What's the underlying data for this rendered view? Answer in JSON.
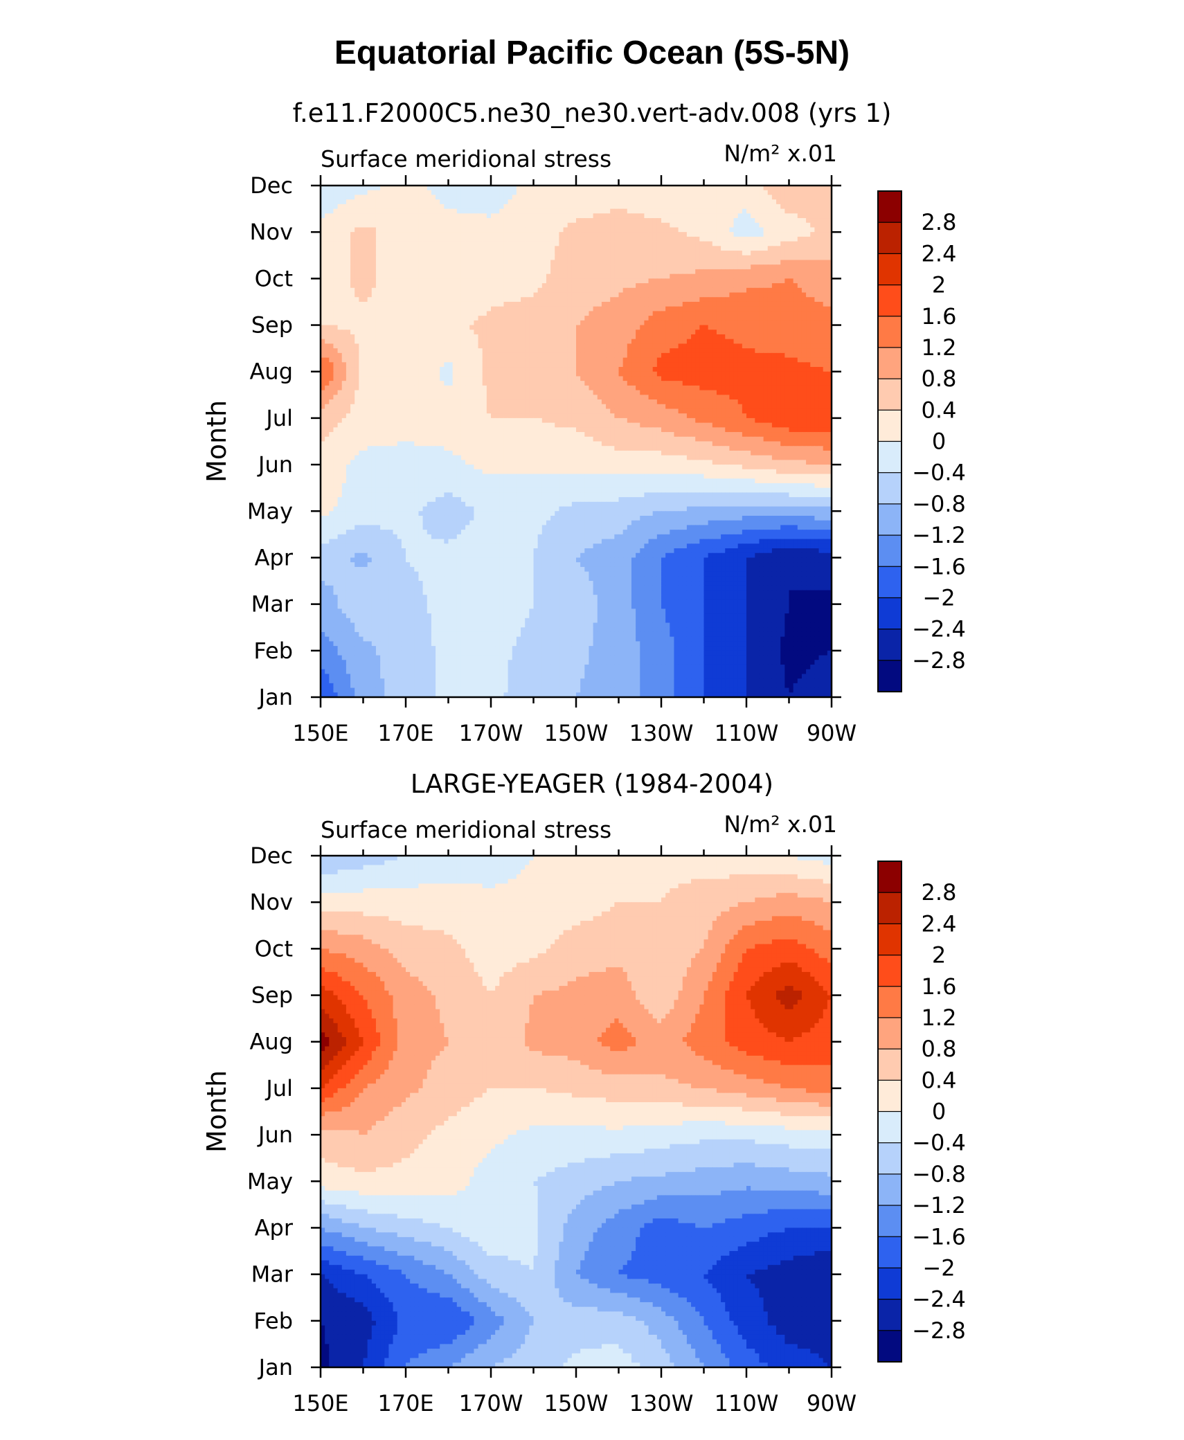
{
  "figure": {
    "title": "Equatorial Pacific Ocean (5S-5N)"
  },
  "colorbar": {
    "levels": [
      "2.8",
      "2.4",
      "2",
      "1.6",
      "1.2",
      "0.8",
      "0.4",
      "0",
      "−0.4",
      "−0.8",
      "−1.2",
      "−1.6",
      "−2",
      "−2.4",
      "−2.8"
    ],
    "colors": [
      "#8c0000",
      "#bb2200",
      "#e03400",
      "#ff4d1a",
      "#ff7a45",
      "#ffa47e",
      "#ffcbb0",
      "#ffebd9",
      "#d9ecfb",
      "#b6d2fb",
      "#8cb4f7",
      "#5c8ef2",
      "#2e62ef",
      "#0f3bd5",
      "#0a24a8",
      "#020a80"
    ]
  },
  "chart_data": [
    {
      "type": "heatmap",
      "subtitle": "f.e11.F2000C5.ne30_ne30.vert-adv.008 (yrs 1)",
      "left_label": "Surface meridional stress",
      "right_label": "N/m² x.01",
      "ylabel": "Month",
      "y_categories": [
        "Jan",
        "Feb",
        "Mar",
        "Apr",
        "May",
        "Jun",
        "Jul",
        "Aug",
        "Sep",
        "Oct",
        "Nov",
        "Dec"
      ],
      "x_ticks": [
        "150E",
        "170E",
        "170W",
        "150W",
        "130W",
        "110W",
        "90W"
      ],
      "x_longitudes": [
        150,
        160,
        170,
        180,
        190,
        200,
        210,
        220,
        230,
        240,
        250,
        260,
        270
      ],
      "values": [
        [
          -2.0,
          -1.0,
          -0.6,
          -0.3,
          -0.3,
          -0.6,
          -0.8,
          -1.0,
          -1.4,
          -2.0,
          -2.4,
          -2.8,
          -2.6
        ],
        [
          -1.4,
          -0.9,
          -0.6,
          -0.3,
          -0.3,
          -0.5,
          -0.7,
          -1.0,
          -1.4,
          -2.0,
          -2.4,
          -2.9,
          -2.8
        ],
        [
          -1.0,
          -0.5,
          -0.5,
          -0.3,
          -0.2,
          -0.4,
          -0.6,
          -1.0,
          -1.6,
          -2.0,
          -2.4,
          -2.8,
          -2.9
        ],
        [
          -0.6,
          -0.9,
          -0.4,
          -0.3,
          -0.2,
          -0.4,
          -0.8,
          -1.0,
          -1.6,
          -2.0,
          -2.4,
          -2.8,
          -2.6
        ],
        [
          0.1,
          -0.2,
          -0.3,
          -0.6,
          -0.3,
          -0.3,
          -0.5,
          -0.6,
          -0.8,
          -0.9,
          -1.0,
          -1.0,
          -0.9
        ],
        [
          0.2,
          -0.1,
          -0.1,
          -0.1,
          0.1,
          0.1,
          0.1,
          0.2,
          0.2,
          0.3,
          0.5,
          0.7,
          0.8
        ],
        [
          0.6,
          0.2,
          0.1,
          0.2,
          0.4,
          0.4,
          0.5,
          0.8,
          1.0,
          1.3,
          1.6,
          1.9,
          2.0
        ],
        [
          1.7,
          0.3,
          0.3,
          -0.1,
          0.5,
          0.6,
          0.8,
          1.2,
          1.7,
          1.8,
          1.7,
          1.7,
          1.6
        ],
        [
          0.4,
          0.3,
          0.3,
          0.3,
          0.5,
          0.6,
          0.8,
          1.0,
          1.4,
          1.6,
          1.5,
          1.4,
          1.3
        ],
        [
          0.2,
          0.5,
          0.2,
          0.1,
          0.2,
          0.3,
          0.6,
          0.7,
          0.8,
          0.9,
          1.1,
          1.2,
          1.0
        ],
        [
          0.1,
          0.5,
          0.2,
          0.1,
          0.1,
          0.2,
          0.5,
          0.6,
          0.5,
          0.3,
          -0.2,
          0.2,
          0.5
        ],
        [
          -0.3,
          -0.1,
          0.1,
          -0.1,
          -0.2,
          0.1,
          0.1,
          0.2,
          0.1,
          0.1,
          0.2,
          0.7,
          0.6
        ]
      ]
    },
    {
      "type": "heatmap",
      "subtitle": "LARGE-YEAGER (1984-2004)",
      "left_label": "Surface meridional stress",
      "right_label": "N/m² x.01",
      "ylabel": "Month",
      "y_categories": [
        "Jan",
        "Feb",
        "Mar",
        "Apr",
        "May",
        "Jun",
        "Jul",
        "Aug",
        "Sep",
        "Oct",
        "Nov",
        "Dec"
      ],
      "x_ticks": [
        "150E",
        "170E",
        "170W",
        "150W",
        "130W",
        "110W",
        "90W"
      ],
      "x_longitudes": [
        150,
        160,
        170,
        180,
        190,
        200,
        210,
        220,
        230,
        240,
        250,
        260,
        270
      ],
      "values": [
        [
          -2.9,
          -2.4,
          -1.6,
          -1.2,
          -0.8,
          -0.6,
          -0.3,
          -0.2,
          -0.6,
          -1.2,
          -1.8,
          -2.2,
          -2.4
        ],
        [
          -2.8,
          -2.6,
          -1.9,
          -2.0,
          -1.4,
          -0.8,
          -0.6,
          -0.6,
          -1.0,
          -1.6,
          -2.2,
          -2.6,
          -2.6
        ],
        [
          -2.4,
          -2.0,
          -1.6,
          -1.2,
          -0.6,
          -0.4,
          -1.2,
          -1.6,
          -1.8,
          -2.0,
          -2.4,
          -2.6,
          -2.8
        ],
        [
          -1.2,
          -0.8,
          -0.6,
          -0.4,
          -0.1,
          -0.3,
          -1.0,
          -1.4,
          -1.8,
          -1.6,
          -1.8,
          -2.0,
          -2.0
        ],
        [
          0.2,
          0.3,
          0.3,
          0.2,
          -0.2,
          -0.4,
          -0.6,
          -0.8,
          -0.9,
          -1.0,
          -1.1,
          -1.0,
          -0.9
        ],
        [
          0.6,
          0.8,
          0.5,
          0.3,
          0.1,
          -0.1,
          -0.1,
          -0.1,
          -0.2,
          -0.3,
          -0.3,
          -0.2,
          -0.2
        ],
        [
          2.0,
          1.2,
          0.9,
          0.6,
          0.4,
          0.4,
          0.5,
          0.6,
          0.7,
          0.8,
          1.0,
          1.2,
          1.4
        ],
        [
          3.0,
          2.0,
          1.0,
          0.8,
          0.5,
          0.9,
          1.0,
          1.4,
          1.0,
          1.4,
          1.8,
          2.0,
          1.8
        ],
        [
          2.2,
          1.6,
          1.0,
          0.7,
          0.4,
          0.8,
          0.9,
          1.0,
          0.5,
          1.2,
          2.0,
          2.6,
          2.0
        ],
        [
          1.2,
          1.0,
          0.6,
          0.5,
          0.2,
          0.3,
          0.6,
          0.7,
          0.5,
          0.8,
          1.6,
          1.8,
          1.4
        ],
        [
          0.2,
          0.2,
          0.2,
          0.2,
          0.1,
          0.1,
          0.2,
          0.4,
          0.4,
          0.6,
          0.8,
          1.0,
          0.8
        ],
        [
          -0.8,
          -0.6,
          -0.4,
          -0.3,
          -0.2,
          0.0,
          0.1,
          0.2,
          0.3,
          0.2,
          0.1,
          0.0,
          -0.2
        ]
      ]
    }
  ]
}
